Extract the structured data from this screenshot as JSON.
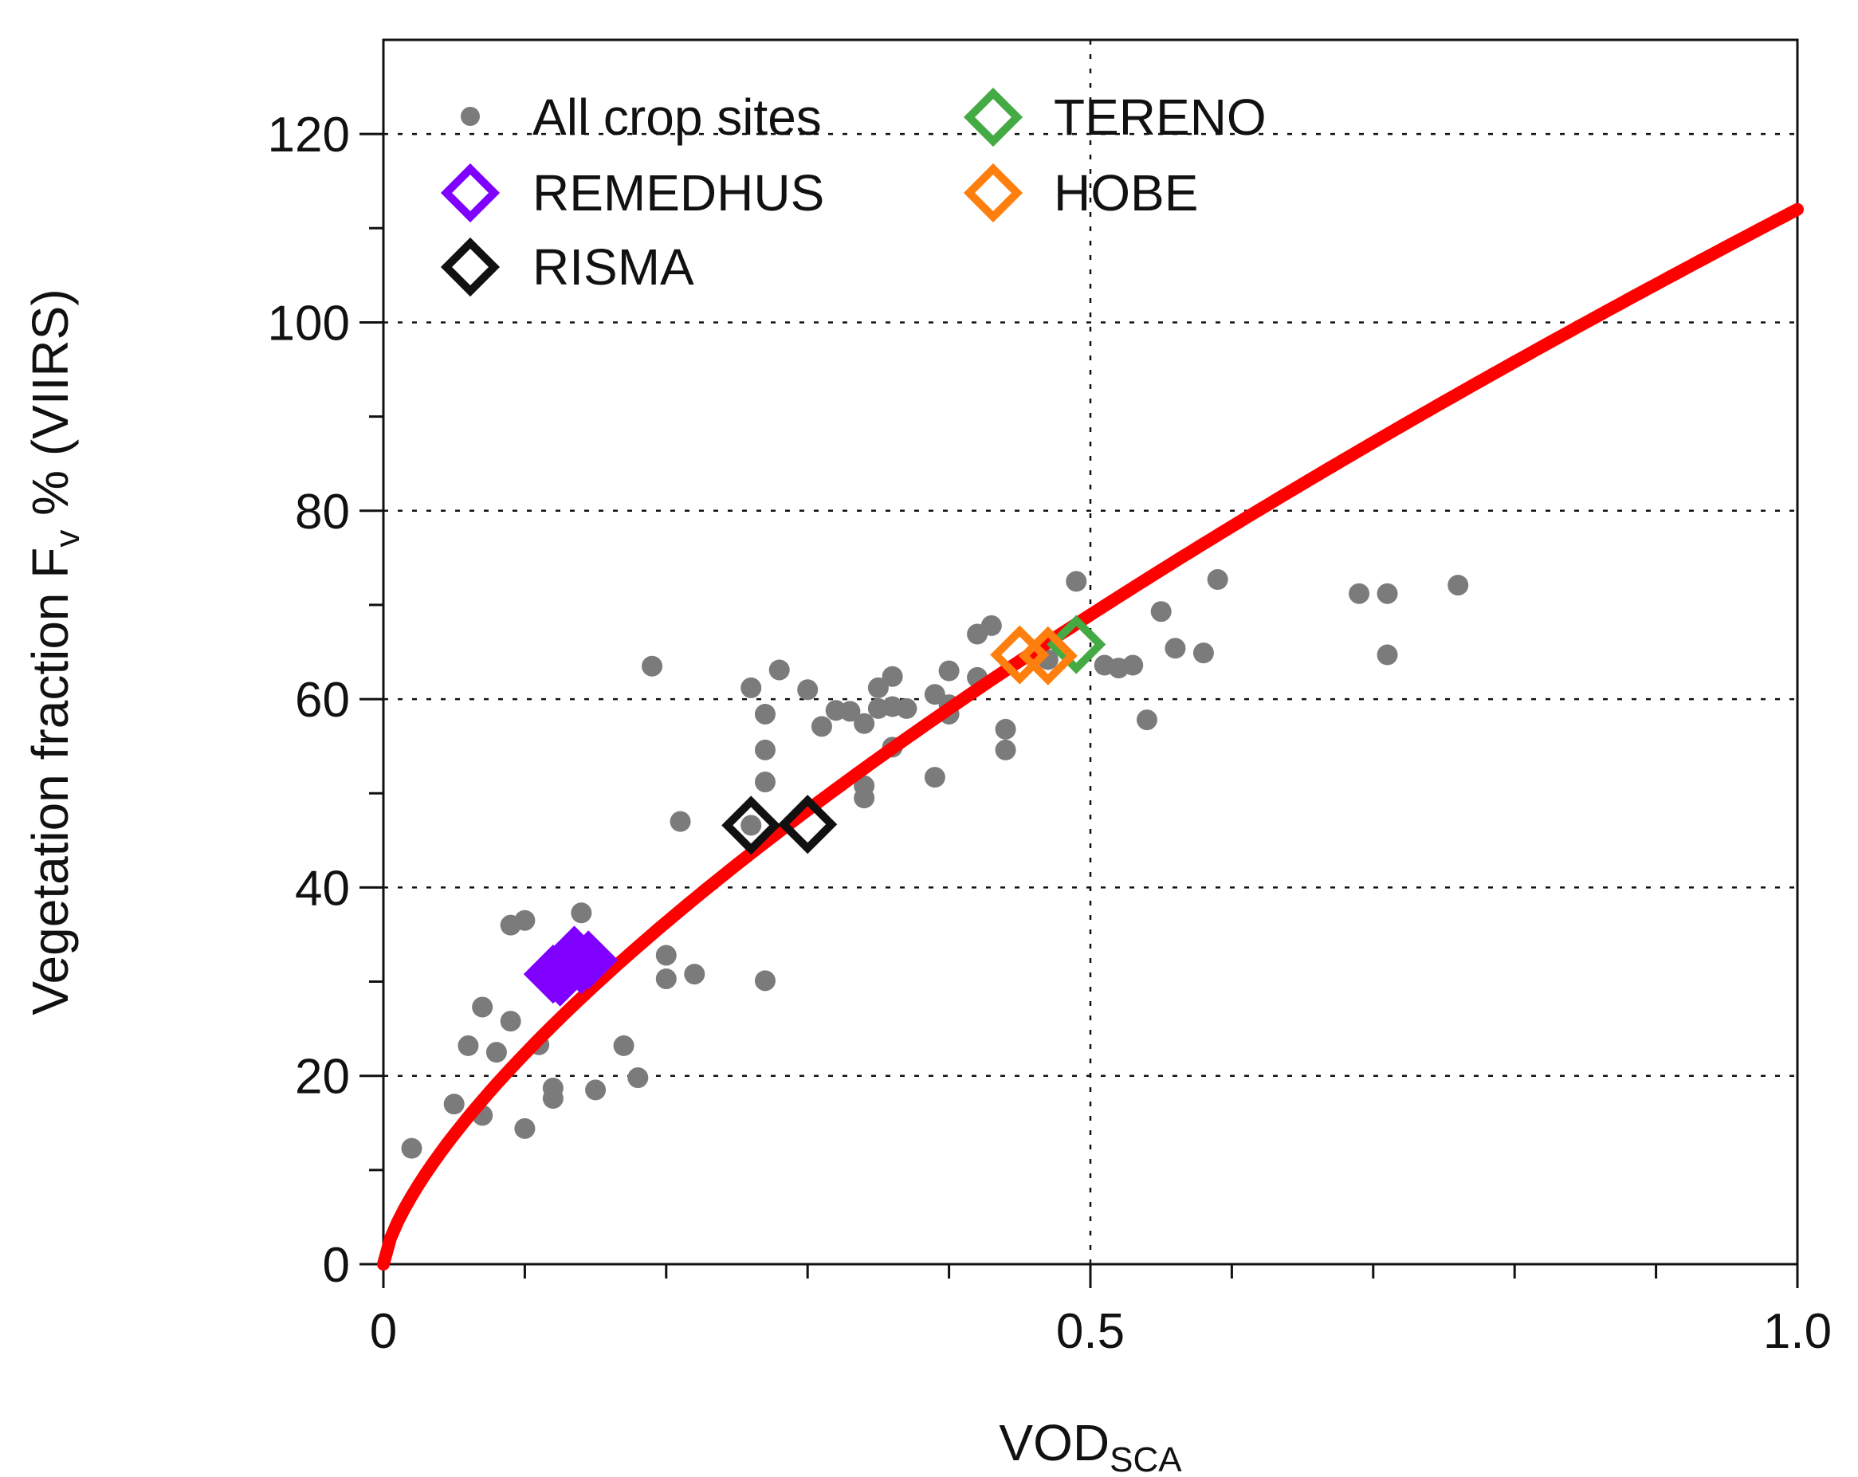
{
  "chart_data": {
    "type": "scatter",
    "title": "",
    "xlabel": {
      "main": "VOD",
      "sub": "SCA"
    },
    "ylabel": {
      "main": "Vegetation fraction F",
      "sub": "v",
      "suffix": " % (VIIRS)"
    },
    "xlim": [
      0,
      1.0
    ],
    "ylim": [
      0,
      130
    ],
    "x_major_ticks": [
      0,
      0.5,
      1.0
    ],
    "x_tick_labels": [
      "0",
      "0.5",
      "1.0"
    ],
    "x_minor_ticks": [
      0.1,
      0.2,
      0.3,
      0.4,
      0.6,
      0.7,
      0.8,
      0.9
    ],
    "y_major_ticks": [
      0,
      20,
      40,
      60,
      80,
      100,
      120
    ],
    "y_tick_labels": [
      "0",
      "20",
      "40",
      "60",
      "80",
      "100",
      "120"
    ],
    "y_minor_ticks": [
      10,
      30,
      50,
      70,
      90,
      110
    ],
    "grid": {
      "horizontal": [
        20,
        40,
        60,
        80,
        100,
        120
      ],
      "vertical": [
        0.5
      ]
    },
    "legend_position": "top-left",
    "legend": [
      {
        "label": "All crop sites",
        "marker": "dot",
        "color": "#7b7b7b"
      },
      {
        "label": "REMEDHUS",
        "marker": "diamond",
        "color": "#8000ff"
      },
      {
        "label": "RISMA",
        "marker": "diamond",
        "color": "#111111"
      },
      {
        "label": "TERENO",
        "marker": "diamond",
        "color": "#44aa44"
      },
      {
        "label": "HOBE",
        "marker": "diamond",
        "color": "#ff7f0e"
      }
    ],
    "fit_curve": {
      "name": "fit",
      "color": "#ff0000",
      "equation": "y = 112 * x^0.7"
    },
    "series": [
      {
        "name": "All crop sites",
        "color": "#7b7b7b",
        "points": [
          [
            0.02,
            12.3
          ],
          [
            0.05,
            17
          ],
          [
            0.06,
            23.2
          ],
          [
            0.07,
            15.8
          ],
          [
            0.07,
            27.3
          ],
          [
            0.08,
            22.5
          ],
          [
            0.09,
            25.8
          ],
          [
            0.09,
            36
          ],
          [
            0.1,
            14.4
          ],
          [
            0.1,
            36.5
          ],
          [
            0.11,
            23.3
          ],
          [
            0.12,
            18.7
          ],
          [
            0.12,
            17.6
          ],
          [
            0.14,
            37.3
          ],
          [
            0.15,
            18.5
          ],
          [
            0.17,
            23.2
          ],
          [
            0.18,
            19.8
          ],
          [
            0.19,
            63.5
          ],
          [
            0.2,
            32.8
          ],
          [
            0.2,
            30.3
          ],
          [
            0.21,
            47
          ],
          [
            0.22,
            30.8
          ],
          [
            0.26,
            61.2
          ],
          [
            0.26,
            46.6
          ],
          [
            0.27,
            58.4
          ],
          [
            0.27,
            54.6
          ],
          [
            0.27,
            51.2
          ],
          [
            0.27,
            30.1
          ],
          [
            0.28,
            63.1
          ],
          [
            0.3,
            61
          ],
          [
            0.31,
            57.1
          ],
          [
            0.32,
            58.8
          ],
          [
            0.33,
            58.7
          ],
          [
            0.34,
            57.4
          ],
          [
            0.34,
            50.8
          ],
          [
            0.34,
            49.5
          ],
          [
            0.35,
            61.2
          ],
          [
            0.35,
            59
          ],
          [
            0.36,
            62.4
          ],
          [
            0.36,
            59.2
          ],
          [
            0.36,
            54.9
          ],
          [
            0.37,
            59
          ],
          [
            0.39,
            60.5
          ],
          [
            0.39,
            51.7
          ],
          [
            0.4,
            63
          ],
          [
            0.4,
            59.4
          ],
          [
            0.4,
            58.4
          ],
          [
            0.42,
            66.9
          ],
          [
            0.42,
            62.3
          ],
          [
            0.43,
            67.8
          ],
          [
            0.44,
            56.8
          ],
          [
            0.44,
            54.6
          ],
          [
            0.47,
            64.2
          ],
          [
            0.49,
            72.5
          ],
          [
            0.51,
            63.6
          ],
          [
            0.52,
            63.3
          ],
          [
            0.53,
            63.6
          ],
          [
            0.54,
            57.8
          ],
          [
            0.55,
            69.3
          ],
          [
            0.56,
            65.4
          ],
          [
            0.58,
            64.9
          ],
          [
            0.59,
            72.7
          ],
          [
            0.69,
            71.2
          ],
          [
            0.71,
            71.2
          ],
          [
            0.71,
            64.7
          ],
          [
            0.76,
            72.1
          ]
        ]
      },
      {
        "name": "REMEDHUS",
        "color": "#8000ff",
        "points": [
          [
            0.12,
            30.8
          ],
          [
            0.13,
            31.5
          ],
          [
            0.135,
            32.8
          ],
          [
            0.14,
            31.8
          ],
          [
            0.145,
            32.3
          ],
          [
            0.125,
            30.5
          ]
        ]
      },
      {
        "name": "RISMA",
        "color": "#111111",
        "points": [
          [
            0.26,
            46.6
          ],
          [
            0.3,
            46.7
          ]
        ]
      },
      {
        "name": "TERENO",
        "color": "#44aa44",
        "points": [
          [
            0.49,
            65.8
          ]
        ]
      },
      {
        "name": "HOBE",
        "color": "#ff7f0e",
        "points": [
          [
            0.45,
            64.7
          ],
          [
            0.47,
            64.6
          ]
        ]
      }
    ]
  }
}
